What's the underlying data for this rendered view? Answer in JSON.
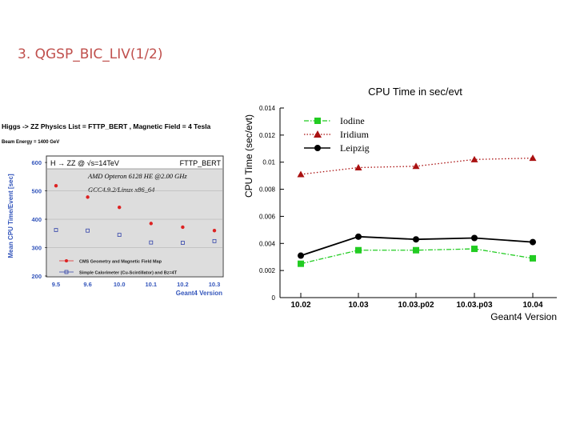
{
  "slide": {
    "title": "3. QGSP_BIC_LIV(1/2)"
  },
  "chart_data": [
    {
      "type": "scatter",
      "header": {
        "line1": "Higgs -> ZZ Physics List = FTTP_BERT , Magnetic Field = 4 Tesla",
        "line2": "Beam Energy = 1400 GeV"
      },
      "process_label": "H → ZZ @ √s=14TeV",
      "physics_list_label": "FTTP_BERT",
      "annotations": [
        "AMD Opteron 6128 HE @2.00 GHz",
        "GCC4.9.2/Linux x86_64"
      ],
      "xlabel": "Geant4 Version",
      "ylabel": "Mean CPU Time/Event [sec]",
      "categories": [
        "9.5",
        "9.6",
        "10.0",
        "10.1",
        "10.2",
        "10.3"
      ],
      "ylim": [
        200,
        620
      ],
      "yticks": [
        "200",
        "300",
        "400",
        "500",
        "600"
      ],
      "series": [
        {
          "name": "CMS Geometry and Magnetic Field Map",
          "color": "#dd2222",
          "marker": "circle",
          "values": [
            518,
            478,
            442,
            385,
            372,
            360
          ]
        },
        {
          "name": "Simple Calorimeter (Cu-Scintillator) and Bz=4T",
          "color": "#3344aa",
          "marker": "open-square",
          "values": [
            362,
            360,
            345,
            318,
            317,
            323
          ]
        }
      ]
    },
    {
      "type": "line",
      "title": "CPU Time in sec/evt",
      "xlabel": "Geant4 Version",
      "ylabel": "CPU Time (sec/evt)",
      "categories": [
        "10.02",
        "10.03",
        "10.03.p02",
        "10.03.p03",
        "10.04"
      ],
      "ylim": [
        0,
        0.014
      ],
      "yticks": [
        "0",
        "0.002",
        "0.004",
        "0.006",
        "0.008",
        "0.01",
        "0.012",
        "0.014"
      ],
      "series": [
        {
          "name": "Iodine",
          "color": "#22cc22",
          "marker": "square",
          "dash": "dashdot",
          "values": [
            0.0025,
            0.0035,
            0.0035,
            0.0036,
            0.0029
          ]
        },
        {
          "name": "Iridium",
          "color": "#aa1111",
          "marker": "triangle",
          "dash": "dotted",
          "values": [
            0.0091,
            0.0096,
            0.0097,
            0.0102,
            0.0103
          ]
        },
        {
          "name": "Leipzig",
          "color": "#000000",
          "marker": "circle",
          "dash": "solid",
          "values": [
            0.0031,
            0.0045,
            0.0043,
            0.0044,
            0.0041
          ]
        }
      ]
    }
  ]
}
